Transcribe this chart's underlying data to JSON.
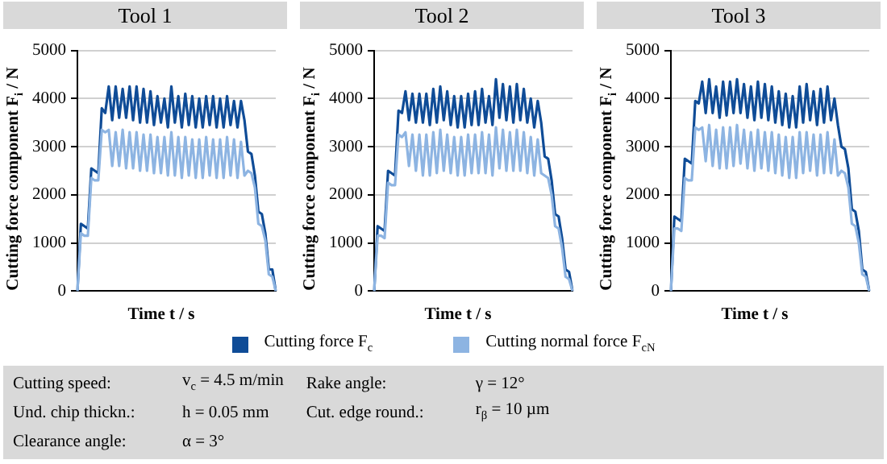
{
  "chart_data": [
    {
      "type": "line",
      "title": "Tool 1",
      "xlabel": "Time t / s",
      "ylabel": "Cutting force component F$_{i}$ / N",
      "ylim": [
        0,
        5000
      ],
      "yticks": [
        0,
        1000,
        2000,
        3000,
        4000,
        5000
      ],
      "grid": "y",
      "tick_labels": "y",
      "legend": "bottom",
      "marker": "none",
      "line_style": "solid",
      "categories": [
        null,
        null,
        null,
        null,
        null,
        null,
        null,
        null,
        null,
        null,
        null,
        null,
        null,
        null,
        null,
        null,
        null,
        null,
        null,
        null,
        null,
        null,
        null,
        null,
        null,
        null,
        null,
        null,
        null,
        null,
        null,
        null,
        null,
        null,
        null,
        null,
        null,
        null,
        null,
        null,
        null,
        null,
        null,
        null,
        null,
        null,
        null,
        null,
        null,
        null,
        null,
        null,
        null,
        null,
        null,
        null,
        null,
        null
      ],
      "series": [
        {
          "name": "Cutting force F$_{c}$",
          "color": "#0f4c97",
          "values": [
            0,
            1400,
            1350,
            1300,
            2550,
            2500,
            2450,
            3800,
            3700,
            4250,
            3550,
            4250,
            3600,
            4200,
            3600,
            4250,
            3550,
            4250,
            3500,
            4200,
            3500,
            4150,
            3450,
            4050,
            3500,
            4000,
            3400,
            4250,
            3500,
            4050,
            3400,
            4100,
            3450,
            4050,
            3400,
            4000,
            3400,
            4050,
            3450,
            4050,
            3400,
            4000,
            3400,
            4050,
            3450,
            3950,
            3400,
            3950,
            3550,
            2900,
            2850,
            2400,
            1650,
            1600,
            1200,
            450,
            450,
            0
          ]
        },
        {
          "name": "Cutting normal force F$_{cN}$",
          "color": "#8db4e2",
          "values": [
            0,
            1200,
            1150,
            1150,
            2350,
            2300,
            2300,
            3350,
            3300,
            3350,
            2600,
            3300,
            2600,
            3350,
            2550,
            3300,
            2550,
            3300,
            2500,
            3250,
            2500,
            3250,
            2450,
            3200,
            2450,
            3200,
            2400,
            3300,
            2400,
            3200,
            2350,
            3200,
            2400,
            3150,
            2350,
            3150,
            2350,
            3200,
            2400,
            3150,
            2350,
            3150,
            2350,
            3200,
            2400,
            3150,
            2350,
            3100,
            2400,
            2500,
            2450,
            2150,
            1400,
            1350,
            1050,
            350,
            300,
            0
          ]
        }
      ]
    },
    {
      "type": "line",
      "title": "Tool 2",
      "xlabel": "Time t / s",
      "ylabel": "Cutting force component F$_{i}$ / N",
      "ylim": [
        0,
        5000
      ],
      "yticks": [
        0,
        1000,
        2000,
        3000,
        4000,
        5000
      ],
      "grid": "y",
      "tick_labels": "y",
      "marker": "none",
      "line_style": "solid",
      "categories": [
        null,
        null,
        null,
        null,
        null,
        null,
        null,
        null,
        null,
        null,
        null,
        null,
        null,
        null,
        null,
        null,
        null,
        null,
        null,
        null,
        null,
        null,
        null,
        null,
        null,
        null,
        null,
        null,
        null,
        null,
        null,
        null,
        null,
        null,
        null,
        null,
        null,
        null,
        null,
        null,
        null,
        null,
        null,
        null,
        null,
        null,
        null,
        null,
        null,
        null,
        null,
        null,
        null,
        null,
        null,
        null,
        null,
        null
      ],
      "series": [
        {
          "color": "#0f4c97",
          "values": [
            0,
            1350,
            1300,
            1250,
            2500,
            2450,
            2400,
            3750,
            3700,
            4150,
            3550,
            4100,
            3500,
            4100,
            3500,
            4100,
            3450,
            4200,
            3500,
            4250,
            3550,
            4150,
            3450,
            4050,
            3400,
            4050,
            3400,
            4100,
            3450,
            4150,
            3450,
            4200,
            3500,
            4050,
            3450,
            4400,
            3600,
            4300,
            3550,
            4250,
            3500,
            4300,
            3550,
            4200,
            3500,
            4000,
            3400,
            3950,
            3500,
            2800,
            2750,
            2300,
            1600,
            1550,
            1100,
            450,
            400,
            0
          ]
        },
        {
          "color": "#8db4e2",
          "values": [
            0,
            1150,
            1150,
            1100,
            2250,
            2200,
            2200,
            3250,
            3200,
            3300,
            2600,
            3250,
            2500,
            3250,
            2400,
            3250,
            2400,
            3300,
            2450,
            3350,
            2500,
            3250,
            2450,
            3200,
            2400,
            3200,
            2400,
            3250,
            2450,
            3250,
            2450,
            3300,
            2450,
            3250,
            2400,
            3400,
            2550,
            3350,
            2500,
            3300,
            2500,
            3350,
            2500,
            3300,
            2450,
            3200,
            2400,
            3150,
            2450,
            2400,
            2350,
            2000,
            1350,
            1300,
            900,
            300,
            250,
            0
          ]
        }
      ]
    },
    {
      "type": "line",
      "title": "Tool 3",
      "xlabel": "Time t / s",
      "ylabel": "Cutting force component F$_{i}$ / N",
      "ylim": [
        0,
        5000
      ],
      "yticks": [
        0,
        1000,
        2000,
        3000,
        4000,
        5000
      ],
      "grid": "y",
      "tick_labels": "y",
      "marker": "none",
      "line_style": "solid",
      "categories": [
        null,
        null,
        null,
        null,
        null,
        null,
        null,
        null,
        null,
        null,
        null,
        null,
        null,
        null,
        null,
        null,
        null,
        null,
        null,
        null,
        null,
        null,
        null,
        null,
        null,
        null,
        null,
        null,
        null,
        null,
        null,
        null,
        null,
        null,
        null,
        null,
        null,
        null,
        null,
        null,
        null,
        null,
        null,
        null,
        null,
        null,
        null,
        null,
        null,
        null,
        null,
        null,
        null,
        null,
        null,
        null,
        null,
        null
      ],
      "series": [
        {
          "color": "#0f4c97",
          "values": [
            0,
            1550,
            1500,
            1450,
            2750,
            2700,
            2650,
            3950,
            3900,
            4350,
            3700,
            4400,
            3700,
            4250,
            3600,
            4350,
            3650,
            4350,
            3700,
            4400,
            3700,
            4300,
            3600,
            4250,
            3550,
            4350,
            3600,
            4300,
            3550,
            4250,
            3500,
            4150,
            3450,
            4100,
            3400,
            4050,
            3400,
            4250,
            3500,
            4300,
            3550,
            4150,
            3450,
            4200,
            3500,
            4250,
            3550,
            4000,
            3450,
            3000,
            2950,
            2550,
            1700,
            1650,
            1250,
            450,
            400,
            0
          ]
        },
        {
          "color": "#8db4e2",
          "values": [
            0,
            1300,
            1300,
            1250,
            2350,
            2300,
            2300,
            3400,
            3350,
            3400,
            2700,
            3450,
            2600,
            3350,
            2550,
            3400,
            2550,
            3400,
            2600,
            3450,
            2650,
            3350,
            2550,
            3300,
            2500,
            3350,
            2550,
            3300,
            2500,
            3300,
            2450,
            3250,
            2400,
            3200,
            2350,
            3200,
            2350,
            3300,
            2450,
            3300,
            2500,
            3250,
            2400,
            3250,
            2450,
            3300,
            2450,
            3150,
            2400,
            2500,
            2450,
            2150,
            1400,
            1350,
            1000,
            350,
            300,
            0
          ]
        }
      ]
    },
    {
      "type": "other",
      "annotations": [
        "Cutting speed:",
        "v$_{c}$ = 4.5 m/min",
        "Und. chip thickn.:",
        "h = 0.05 mm",
        "Clearance angle:",
        "α = 3°",
        "Rake angle:",
        "γ = 12°",
        "Cut. edge round.:",
        "r$_{β}$ = 10 µm"
      ]
    }
  ]
}
